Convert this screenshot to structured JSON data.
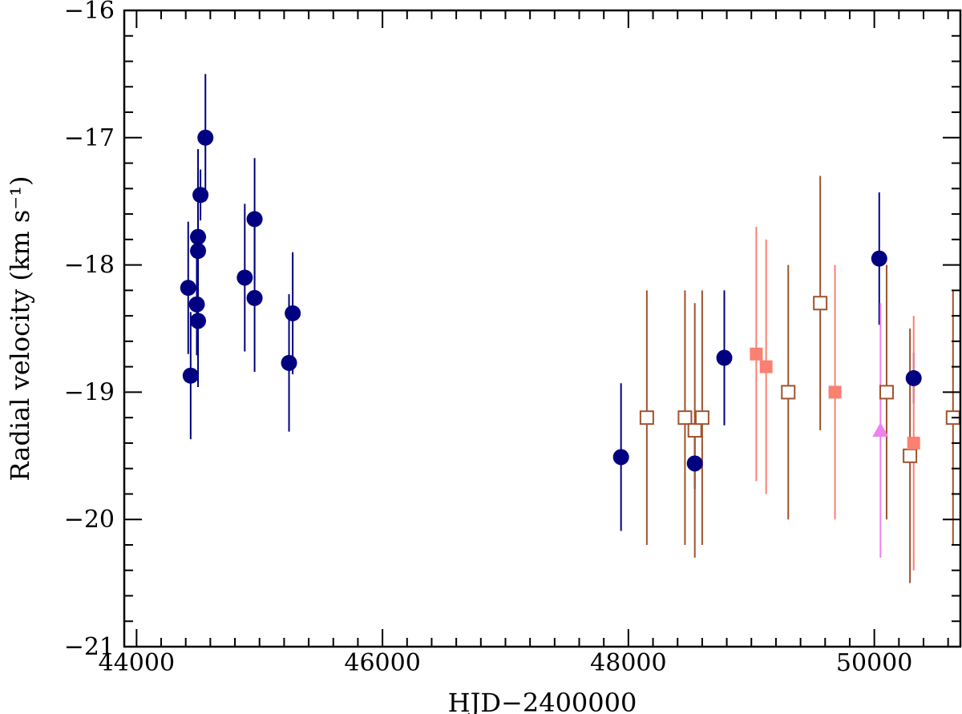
{
  "chart_data": {
    "type": "scatter",
    "title": "",
    "xlabel": "HJD−2400000",
    "ylabel": "Radial velocity (km s⁻¹)",
    "xlim": [
      43900,
      50700
    ],
    "ylim": [
      -21,
      -16
    ],
    "y_reversed": true,
    "x_ticks": [
      44000,
      46000,
      48000,
      50000
    ],
    "x_tick_labels": [
      "44000",
      "46000",
      "48000",
      "50000"
    ],
    "y_ticks": [
      -16,
      -17,
      -18,
      -19,
      -20,
      -21
    ],
    "y_tick_labels": [
      "−16",
      "−17",
      "−18",
      "−19",
      "−20",
      "−21"
    ],
    "grid": false,
    "legend": "none",
    "series": [
      {
        "marker": "filled-circle",
        "color": "#000080",
        "points": [
          {
            "x": 44420,
            "y": -18.18,
            "err": 0.52
          },
          {
            "x": 44440,
            "y": -18.87,
            "err": 0.5
          },
          {
            "x": 44490,
            "y": -18.31,
            "err": 0.4
          },
          {
            "x": 44500,
            "y": -18.44,
            "err": 0.52
          },
          {
            "x": 44500,
            "y": -17.89,
            "err": 0.8
          },
          {
            "x": 44500,
            "y": -17.78,
            "err": 0.52
          },
          {
            "x": 44520,
            "y": -17.45,
            "err": 0.2
          },
          {
            "x": 44560,
            "y": -17.0,
            "err": 0.5
          },
          {
            "x": 44880,
            "y": -18.1,
            "err": 0.58
          },
          {
            "x": 44960,
            "y": -17.64,
            "err": 0.48
          },
          {
            "x": 44960,
            "y": -18.26,
            "err": 0.58
          },
          {
            "x": 45240,
            "y": -18.77,
            "err": 0.54
          },
          {
            "x": 45270,
            "y": -18.38,
            "err": 0.48
          },
          {
            "x": 47940,
            "y": -19.51,
            "err": 0.58
          },
          {
            "x": 48540,
            "y": -19.56,
            "err": 0.2
          },
          {
            "x": 48780,
            "y": -18.73,
            "err": 0.53
          },
          {
            "x": 50040,
            "y": -17.95,
            "err": 0.52
          },
          {
            "x": 50320,
            "y": -18.89,
            "err": 0.2
          }
        ]
      },
      {
        "marker": "open-square",
        "color": "#A0522D",
        "points": [
          {
            "x": 48150,
            "y": -19.2,
            "err": 1.0
          },
          {
            "x": 48460,
            "y": -19.2,
            "err": 1.0
          },
          {
            "x": 48540,
            "y": -19.3,
            "err": 1.0
          },
          {
            "x": 48600,
            "y": -19.2,
            "err": 1.0
          },
          {
            "x": 49300,
            "y": -19.0,
            "err": 1.0
          },
          {
            "x": 49560,
            "y": -18.3,
            "err": 1.0
          },
          {
            "x": 50100,
            "y": -19.0,
            "err": 1.0
          },
          {
            "x": 50290,
            "y": -19.5,
            "err": 1.0
          },
          {
            "x": 50640,
            "y": -19.2,
            "err": 1.0
          }
        ]
      },
      {
        "marker": "filled-square",
        "color": "#FA8072",
        "points": [
          {
            "x": 49040,
            "y": -18.7,
            "err": 1.0
          },
          {
            "x": 49120,
            "y": -18.8,
            "err": 1.0
          },
          {
            "x": 49680,
            "y": -19.0,
            "err": 1.0
          },
          {
            "x": 50320,
            "y": -19.4,
            "err": 1.0
          }
        ]
      },
      {
        "marker": "filled-triangle",
        "color": "#EE82EE",
        "points": [
          {
            "x": 50050,
            "y": -19.3,
            "err": 1.0
          }
        ]
      }
    ]
  }
}
